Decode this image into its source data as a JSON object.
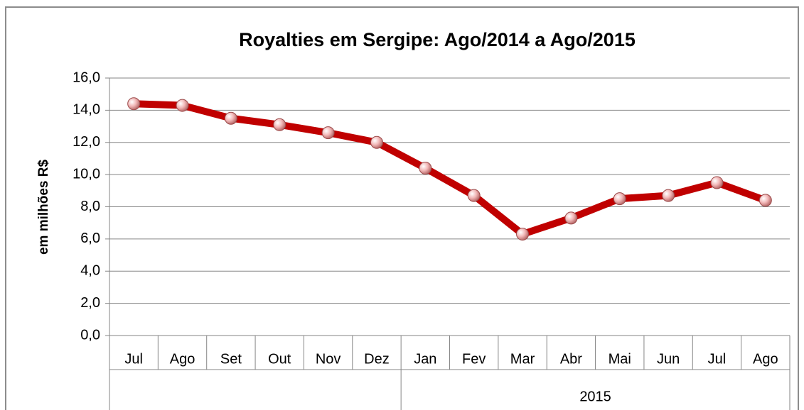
{
  "chart_data": {
    "type": "line",
    "title": "Royalties em Sergipe: Ago/2014 a Ago/2015",
    "y_label": "em milhões R$",
    "categories": [
      "Jul",
      "Ago",
      "Set",
      "Out",
      "Nov",
      "Dez",
      "Jan",
      "Fev",
      "Mar",
      "Abr",
      "Mai",
      "Jun",
      "Jul",
      "Ago"
    ],
    "category_groups": [
      {
        "label": null,
        "span": 6
      },
      {
        "label": "2015",
        "span": 8
      }
    ],
    "series": [
      {
        "name": null,
        "color": "#c00000",
        "values": [
          14.4,
          14.3,
          13.5,
          13.1,
          12.6,
          12.0,
          10.4,
          8.7,
          6.3,
          7.3,
          8.5,
          8.7,
          9.5,
          8.4
        ]
      }
    ],
    "ylim": [
      0,
      16
    ],
    "yticks": [
      {
        "value": 0,
        "label": "0,0"
      },
      {
        "value": 2,
        "label": "2,0"
      },
      {
        "value": 4,
        "label": "4,0"
      },
      {
        "value": 6,
        "label": "6,0"
      },
      {
        "value": 8,
        "label": "8,0"
      },
      {
        "value": 10,
        "label": "10,0"
      },
      {
        "value": 12,
        "label": "12,0"
      },
      {
        "value": 14,
        "label": "14,0"
      },
      {
        "value": 16,
        "label": "16,0"
      }
    ],
    "grid": true
  }
}
